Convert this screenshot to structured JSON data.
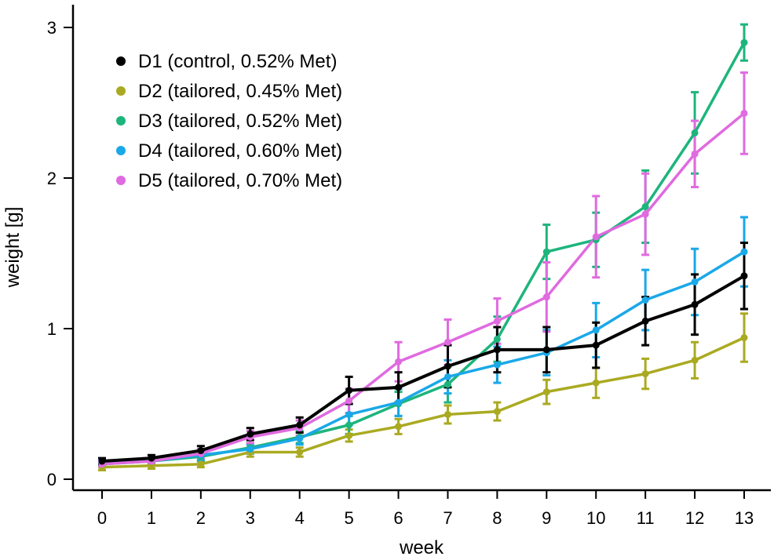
{
  "chart_data": {
    "type": "line",
    "title": "",
    "xlabel": "week",
    "ylabel": "weight [g]",
    "xlim": [
      -0.6,
      13.6
    ],
    "ylim": [
      -0.07,
      3.12
    ],
    "xticks": [
      0,
      1,
      2,
      3,
      4,
      5,
      6,
      7,
      8,
      9,
      10,
      11,
      12,
      13
    ],
    "yticks": [
      0,
      1,
      2,
      3
    ],
    "x": [
      0,
      1,
      2,
      3,
      4,
      5,
      6,
      7,
      8,
      9,
      10,
      11,
      12,
      13
    ],
    "legend_position": "top-left",
    "series": [
      {
        "name": "D1 (control, 0.52% Met)",
        "color": "#000000",
        "values": [
          0.12,
          0.14,
          0.19,
          0.3,
          0.36,
          0.59,
          0.61,
          0.75,
          0.86,
          0.86,
          0.89,
          1.05,
          1.16,
          1.35
        ],
        "errors": [
          0.02,
          0.02,
          0.03,
          0.04,
          0.05,
          0.09,
          0.1,
          0.14,
          0.15,
          0.15,
          0.15,
          0.16,
          0.2,
          0.22
        ]
      },
      {
        "name": "D2 (tailored, 0.45% Met)",
        "color": "#aaaa22",
        "values": [
          0.08,
          0.09,
          0.1,
          0.18,
          0.18,
          0.29,
          0.35,
          0.43,
          0.45,
          0.58,
          0.64,
          0.7,
          0.79,
          0.94
        ],
        "errors": [
          0.02,
          0.02,
          0.02,
          0.03,
          0.03,
          0.04,
          0.05,
          0.06,
          0.06,
          0.08,
          0.1,
          0.1,
          0.12,
          0.16
        ]
      },
      {
        "name": "D3 (tailored, 0.52% Met)",
        "color": "#1db57c",
        "values": [
          0.1,
          0.12,
          0.15,
          0.21,
          0.28,
          0.36,
          0.5,
          0.63,
          0.93,
          1.51,
          1.59,
          1.81,
          2.3,
          2.9
        ],
        "errors": [
          0.02,
          0.02,
          0.03,
          0.03,
          0.04,
          0.06,
          0.08,
          0.12,
          0.15,
          0.18,
          0.18,
          0.24,
          0.27,
          0.12
        ]
      },
      {
        "name": "D4 (tailored, 0.60% Met)",
        "color": "#1aa8e8",
        "values": [
          0.11,
          0.12,
          0.16,
          0.2,
          0.27,
          0.43,
          0.51,
          0.68,
          0.76,
          0.84,
          0.99,
          1.19,
          1.31,
          1.51
        ],
        "errors": [
          0.02,
          0.02,
          0.03,
          0.03,
          0.04,
          0.07,
          0.09,
          0.11,
          0.12,
          0.15,
          0.18,
          0.2,
          0.22,
          0.23
        ]
      },
      {
        "name": "D5 (tailored, 0.70% Met)",
        "color": "#e06ae0",
        "values": [
          0.1,
          0.12,
          0.17,
          0.28,
          0.34,
          0.52,
          0.78,
          0.91,
          1.05,
          1.21,
          1.61,
          1.76,
          2.16,
          2.43
        ],
        "errors": [
          0.02,
          0.02,
          0.03,
          0.04,
          0.05,
          0.08,
          0.13,
          0.15,
          0.15,
          0.23,
          0.27,
          0.27,
          0.22,
          0.27
        ]
      }
    ]
  }
}
